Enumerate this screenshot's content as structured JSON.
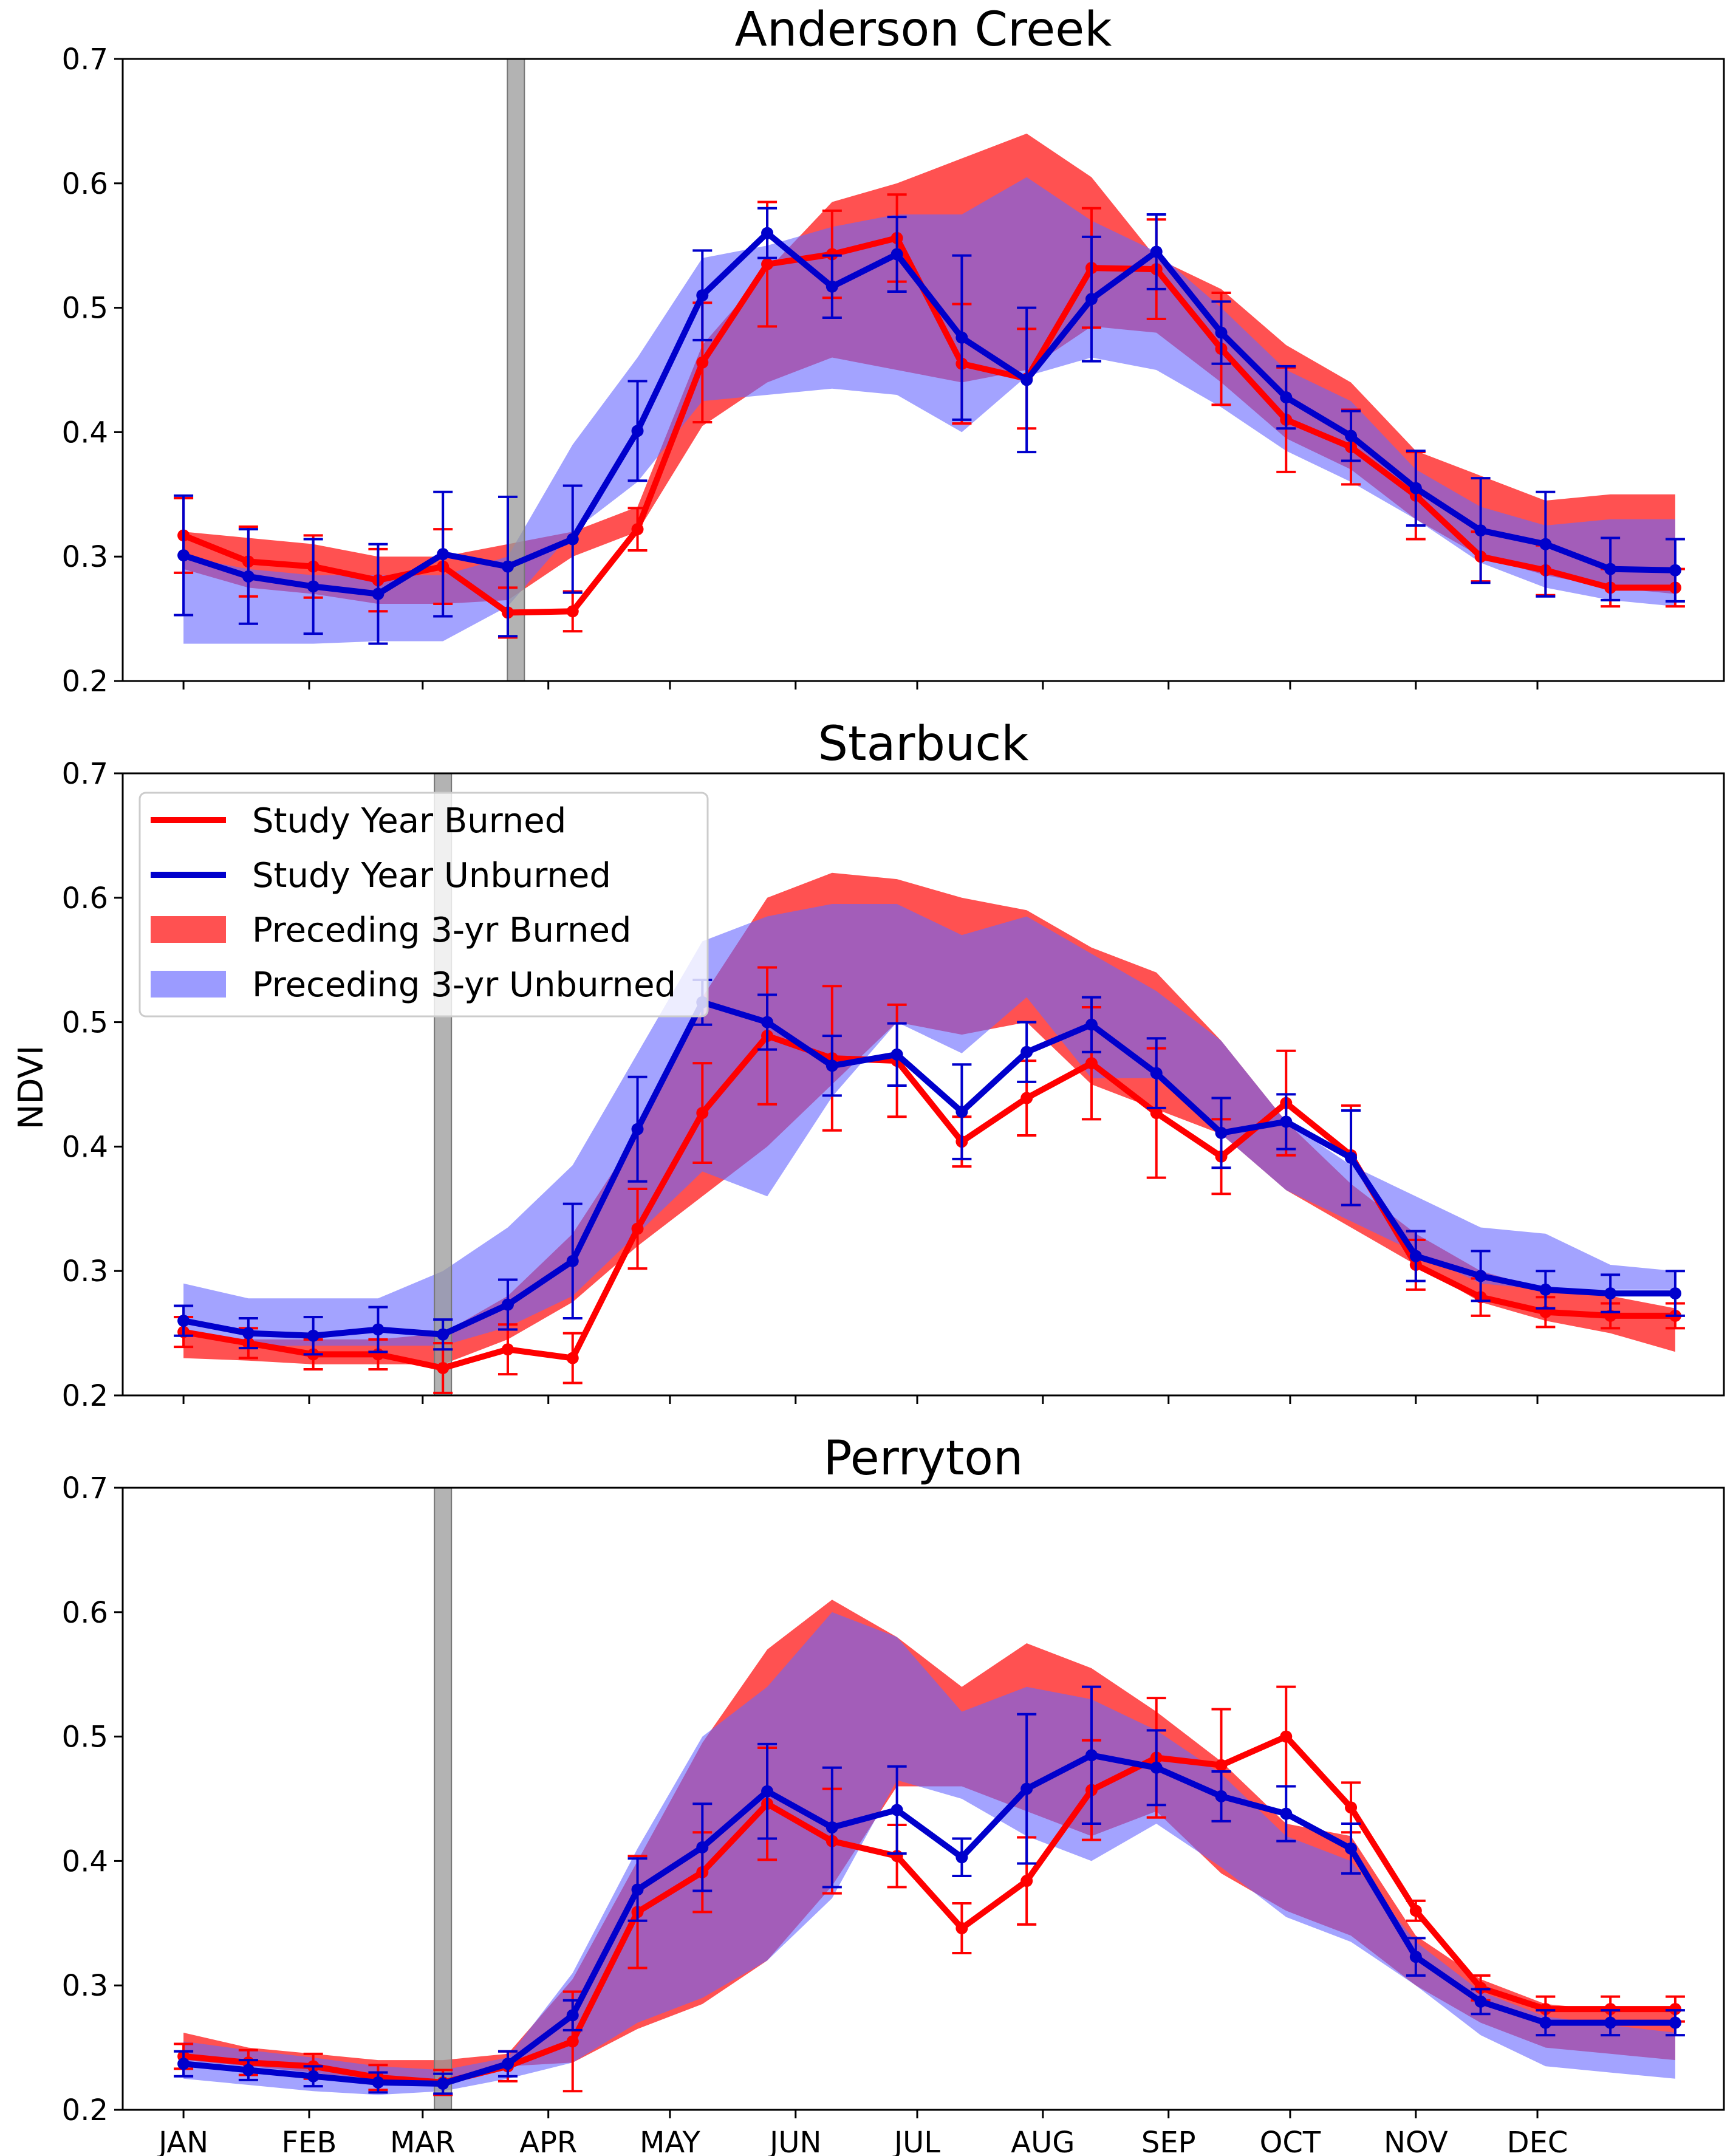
{
  "figure": {
    "ylabel": "NDVI",
    "months": [
      "JAN",
      "FEB",
      "MAR",
      "APR",
      "MAY",
      "JUN",
      "JUL",
      "AUG",
      "SEP",
      "OCT",
      "NOV",
      "DEC"
    ],
    "colors": {
      "burned_line": "#ff0000",
      "unburned_line": "#0000cc",
      "burned_band": "#ff3333",
      "unburned_band": "#6666ff",
      "fire_bar": "#999999"
    },
    "legend": {
      "placement": "upper-left of middle panel",
      "items": [
        {
          "label": "Study Year Burned",
          "kind": "line",
          "color": "#ff0000"
        },
        {
          "label": "Study Year Unburned",
          "kind": "line",
          "color": "#0000cc"
        },
        {
          "label": "Preceding 3-yr Burned",
          "kind": "band",
          "color": "#ff3333"
        },
        {
          "label": "Preceding 3-yr Unburned",
          "kind": "band",
          "color": "#6666ff"
        }
      ]
    }
  },
  "chart_data": [
    {
      "type": "line",
      "title": "Anderson Creek",
      "ylim": [
        0.2,
        0.7
      ],
      "yticks": [
        "0.2",
        "0.3",
        "0.4",
        "0.5",
        "0.6",
        "0.7"
      ],
      "doy_range": [
        -14,
        381
      ],
      "fire_doy": 83,
      "x": [
        1,
        17,
        33,
        49,
        65,
        81,
        97,
        113,
        129,
        145,
        161,
        177,
        193,
        209,
        225,
        241,
        257,
        273,
        289,
        305,
        321,
        337,
        353,
        369
      ],
      "series": [
        {
          "name": "Study Year Burned",
          "values": [
            0.317,
            0.296,
            0.292,
            0.281,
            0.292,
            0.255,
            0.256,
            0.322,
            0.456,
            0.535,
            0.543,
            0.556,
            0.455,
            0.443,
            0.532,
            0.531,
            0.467,
            0.41,
            0.388,
            0.349,
            0.3,
            0.289,
            0.275,
            0.275
          ],
          "err": [
            0.03,
            0.028,
            0.025,
            0.025,
            0.03,
            0.02,
            0.016,
            0.017,
            0.048,
            0.05,
            0.035,
            0.035,
            0.048,
            0.04,
            0.048,
            0.04,
            0.045,
            0.042,
            0.03,
            0.035,
            0.02,
            0.02,
            0.015,
            0.015
          ]
        },
        {
          "name": "Study Year Unburned",
          "values": [
            0.301,
            0.284,
            0.276,
            0.27,
            0.302,
            0.292,
            0.314,
            0.401,
            0.51,
            0.56,
            0.517,
            0.543,
            0.476,
            0.442,
            0.507,
            0.545,
            0.48,
            0.428,
            0.397,
            0.355,
            0.321,
            0.31,
            0.29,
            0.289
          ],
          "err": [
            0.048,
            0.038,
            0.038,
            0.04,
            0.05,
            0.056,
            0.043,
            0.04,
            0.036,
            0.02,
            0.025,
            0.03,
            0.066,
            0.058,
            0.05,
            0.03,
            0.025,
            0.025,
            0.02,
            0.03,
            0.042,
            0.042,
            0.025,
            0.025
          ]
        }
      ],
      "bands": [
        {
          "name": "Preceding 3-yr Burned",
          "low": [
            0.29,
            0.275,
            0.27,
            0.262,
            0.262,
            0.265,
            0.3,
            0.32,
            0.405,
            0.44,
            0.46,
            0.45,
            0.44,
            0.45,
            0.485,
            0.48,
            0.44,
            0.395,
            0.37,
            0.33,
            0.3,
            0.285,
            0.275,
            0.27
          ],
          "high": [
            0.32,
            0.315,
            0.31,
            0.3,
            0.3,
            0.31,
            0.32,
            0.34,
            0.47,
            0.53,
            0.585,
            0.6,
            0.62,
            0.64,
            0.605,
            0.54,
            0.515,
            0.47,
            0.44,
            0.385,
            0.365,
            0.345,
            0.35,
            0.35
          ]
        },
        {
          "name": "Preceding 3-yr Unburned",
          "low": [
            0.23,
            0.23,
            0.23,
            0.232,
            0.232,
            0.26,
            0.32,
            0.36,
            0.425,
            0.43,
            0.435,
            0.43,
            0.4,
            0.445,
            0.46,
            0.45,
            0.42,
            0.385,
            0.36,
            0.33,
            0.295,
            0.275,
            0.265,
            0.26
          ],
          "high": [
            0.3,
            0.29,
            0.285,
            0.285,
            0.285,
            0.3,
            0.39,
            0.46,
            0.54,
            0.55,
            0.565,
            0.575,
            0.575,
            0.605,
            0.57,
            0.545,
            0.5,
            0.45,
            0.425,
            0.37,
            0.34,
            0.325,
            0.33,
            0.33
          ]
        }
      ]
    },
    {
      "type": "line",
      "title": "Starbuck",
      "ylim": [
        0.2,
        0.7
      ],
      "yticks": [
        "0.2",
        "0.3",
        "0.4",
        "0.5",
        "0.6",
        "0.7"
      ],
      "doy_range": [
        -14,
        381
      ],
      "fire_doy": 65,
      "x": [
        1,
        17,
        33,
        49,
        65,
        81,
        97,
        113,
        129,
        145,
        161,
        177,
        193,
        209,
        225,
        241,
        257,
        273,
        289,
        305,
        321,
        337,
        353,
        369
      ],
      "series": [
        {
          "name": "Study Year Burned",
          "values": [
            0.251,
            0.242,
            0.233,
            0.233,
            0.222,
            0.237,
            0.23,
            0.334,
            0.427,
            0.489,
            0.471,
            0.469,
            0.404,
            0.439,
            0.467,
            0.427,
            0.392,
            0.435,
            0.393,
            0.305,
            0.279,
            0.267,
            0.264,
            0.264
          ],
          "err": [
            0.012,
            0.012,
            0.012,
            0.012,
            0.02,
            0.02,
            0.02,
            0.032,
            0.04,
            0.055,
            0.058,
            0.045,
            0.02,
            0.03,
            0.045,
            0.052,
            0.03,
            0.042,
            0.04,
            0.02,
            0.015,
            0.012,
            0.01,
            0.01
          ]
        },
        {
          "name": "Study Year Unburned",
          "values": [
            0.26,
            0.25,
            0.248,
            0.253,
            0.249,
            0.273,
            0.308,
            0.414,
            0.516,
            0.5,
            0.465,
            0.474,
            0.428,
            0.476,
            0.498,
            0.459,
            0.411,
            0.42,
            0.391,
            0.312,
            0.296,
            0.285,
            0.282,
            0.282
          ],
          "err": [
            0.012,
            0.012,
            0.015,
            0.018,
            0.012,
            0.02,
            0.046,
            0.042,
            0.018,
            0.022,
            0.024,
            0.025,
            0.038,
            0.024,
            0.022,
            0.028,
            0.028,
            0.022,
            0.038,
            0.02,
            0.02,
            0.015,
            0.015,
            0.018
          ]
        }
      ],
      "bands": [
        {
          "name": "Preceding 3-yr Burned",
          "low": [
            0.23,
            0.228,
            0.225,
            0.225,
            0.225,
            0.245,
            0.275,
            0.32,
            0.36,
            0.4,
            0.45,
            0.5,
            0.49,
            0.5,
            0.45,
            0.43,
            0.41,
            0.365,
            0.335,
            0.305,
            0.275,
            0.26,
            0.25,
            0.235
          ],
          "high": [
            0.25,
            0.245,
            0.245,
            0.245,
            0.25,
            0.28,
            0.33,
            0.41,
            0.52,
            0.6,
            0.62,
            0.615,
            0.6,
            0.59,
            0.56,
            0.54,
            0.485,
            0.42,
            0.37,
            0.33,
            0.3,
            0.285,
            0.28,
            0.27
          ]
        },
        {
          "name": "Preceding 3-yr Unburned",
          "low": [
            0.25,
            0.24,
            0.24,
            0.24,
            0.24,
            0.255,
            0.28,
            0.33,
            0.38,
            0.36,
            0.44,
            0.5,
            0.475,
            0.52,
            0.455,
            0.455,
            0.41,
            0.365,
            0.34,
            0.315,
            0.29,
            0.285,
            0.285,
            0.285
          ],
          "high": [
            0.29,
            0.278,
            0.278,
            0.278,
            0.3,
            0.335,
            0.385,
            0.475,
            0.565,
            0.585,
            0.595,
            0.595,
            0.57,
            0.585,
            0.555,
            0.525,
            0.485,
            0.42,
            0.385,
            0.36,
            0.335,
            0.33,
            0.305,
            0.3
          ]
        }
      ]
    },
    {
      "type": "line",
      "title": "Perryton",
      "ylim": [
        0.2,
        0.7
      ],
      "yticks": [
        "0.2",
        "0.3",
        "0.4",
        "0.5",
        "0.6",
        "0.7"
      ],
      "doy_range": [
        -14,
        381
      ],
      "fire_doy": 65,
      "x": [
        1,
        17,
        33,
        49,
        65,
        81,
        97,
        113,
        129,
        145,
        161,
        177,
        193,
        209,
        225,
        241,
        257,
        273,
        289,
        305,
        321,
        337,
        353,
        369
      ],
      "series": [
        {
          "name": "Study Year Burned",
          "values": [
            0.243,
            0.238,
            0.235,
            0.226,
            0.222,
            0.235,
            0.255,
            0.359,
            0.391,
            0.446,
            0.416,
            0.404,
            0.346,
            0.384,
            0.457,
            0.483,
            0.477,
            0.5,
            0.443,
            0.36,
            0.298,
            0.281,
            0.281,
            0.281
          ],
          "err": [
            0.01,
            0.01,
            0.01,
            0.01,
            0.01,
            0.012,
            0.04,
            0.045,
            0.032,
            0.045,
            0.042,
            0.025,
            0.02,
            0.035,
            0.04,
            0.048,
            0.045,
            0.04,
            0.02,
            0.008,
            0.01,
            0.01,
            0.01,
            0.01
          ]
        },
        {
          "name": "Study Year Unburned",
          "values": [
            0.237,
            0.232,
            0.227,
            0.222,
            0.221,
            0.237,
            0.276,
            0.377,
            0.411,
            0.456,
            0.427,
            0.441,
            0.403,
            0.458,
            0.485,
            0.475,
            0.452,
            0.438,
            0.41,
            0.323,
            0.287,
            0.27,
            0.27,
            0.27
          ],
          "err": [
            0.01,
            0.008,
            0.008,
            0.008,
            0.008,
            0.01,
            0.012,
            0.025,
            0.035,
            0.038,
            0.048,
            0.035,
            0.015,
            0.06,
            0.055,
            0.03,
            0.02,
            0.022,
            0.02,
            0.015,
            0.01,
            0.01,
            0.01,
            0.01
          ]
        }
      ],
      "bands": [
        {
          "name": "Preceding 3-yr Burned",
          "low": [
            0.24,
            0.235,
            0.23,
            0.222,
            0.225,
            0.235,
            0.238,
            0.265,
            0.285,
            0.32,
            0.38,
            0.46,
            0.46,
            0.44,
            0.42,
            0.44,
            0.39,
            0.36,
            0.34,
            0.3,
            0.27,
            0.25,
            0.245,
            0.24
          ],
          "high": [
            0.262,
            0.25,
            0.245,
            0.24,
            0.24,
            0.245,
            0.305,
            0.4,
            0.495,
            0.57,
            0.61,
            0.58,
            0.54,
            0.575,
            0.555,
            0.52,
            0.48,
            0.43,
            0.42,
            0.34,
            0.305,
            0.285,
            0.28,
            0.28
          ]
        },
        {
          "name": "Preceding 3-yr Unburned",
          "low": [
            0.225,
            0.22,
            0.215,
            0.212,
            0.215,
            0.225,
            0.238,
            0.27,
            0.29,
            0.32,
            0.37,
            0.465,
            0.45,
            0.42,
            0.4,
            0.43,
            0.395,
            0.355,
            0.335,
            0.3,
            0.26,
            0.235,
            0.23,
            0.225
          ],
          "high": [
            0.255,
            0.248,
            0.242,
            0.235,
            0.232,
            0.242,
            0.31,
            0.41,
            0.5,
            0.54,
            0.6,
            0.58,
            0.52,
            0.54,
            0.53,
            0.505,
            0.47,
            0.42,
            0.4,
            0.335,
            0.295,
            0.275,
            0.268,
            0.262
          ]
        }
      ]
    }
  ]
}
